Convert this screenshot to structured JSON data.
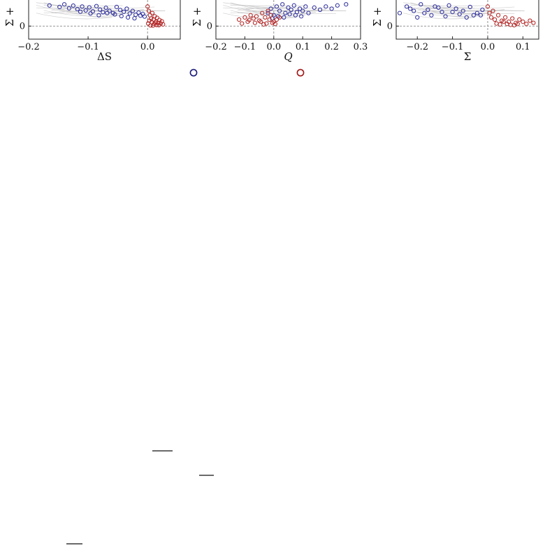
{
  "chart_data": [
    {
      "type": "scatter",
      "xlabel": "ΔS",
      "ylabel": "Σ +",
      "xticks": [
        "−0.2",
        "−0.1",
        "0.0"
      ],
      "yticks": [
        "0"
      ],
      "xlim": [
        -0.2,
        0.055
      ],
      "ylim": [
        -0.06,
        0.12
      ],
      "series": [
        {
          "color": "#2b2b9e",
          "x": [
            -0.165,
            -0.148,
            -0.14,
            -0.132,
            -0.125,
            -0.118,
            -0.11,
            -0.104,
            -0.098,
            -0.092,
            -0.086,
            -0.08,
            -0.075,
            -0.07,
            -0.064,
            -0.058,
            -0.052,
            -0.046,
            -0.04,
            -0.035,
            -0.03,
            -0.025,
            -0.02,
            -0.015,
            -0.012,
            -0.008,
            -0.005,
            -0.113,
            -0.096,
            -0.082,
            -0.068,
            -0.055,
            -0.044,
            -0.033,
            -0.022
          ],
          "y": [
            0.095,
            0.088,
            0.1,
            0.082,
            0.094,
            0.078,
            0.09,
            0.072,
            0.086,
            0.068,
            0.092,
            0.076,
            0.064,
            0.084,
            0.07,
            0.06,
            0.088,
            0.074,
            0.066,
            0.08,
            0.058,
            0.07,
            0.052,
            0.062,
            0.048,
            0.056,
            0.044,
            0.066,
            0.058,
            0.05,
            0.06,
            0.054,
            0.046,
            0.04,
            0.036
          ]
        },
        {
          "color": "#b22222",
          "x": [
            0.0,
            0.002,
            0.004,
            0.006,
            0.008,
            0.01,
            0.012,
            0.014,
            0.016,
            0.018,
            0.02,
            0.022,
            0.024,
            0.026,
            0.003,
            0.007,
            0.011,
            0.015,
            0.019,
            0.001,
            0.005,
            0.009,
            0.013
          ],
          "y": [
            0.09,
            0.07,
            0.05,
            0.035,
            0.06,
            0.03,
            0.045,
            0.02,
            0.038,
            0.015,
            0.028,
            0.012,
            0.022,
            0.008,
            0.025,
            0.018,
            0.01,
            0.005,
            0.004,
            0.012,
            0.003,
            0.002,
            0.015
          ]
        }
      ]
    },
    {
      "type": "scatter",
      "xlabel": "Q",
      "ylabel": "Σ +",
      "xticks": [
        "−0.2",
        "−0.1",
        "0.0",
        "0.1",
        "0.2",
        "0.3"
      ],
      "yticks": [
        "0"
      ],
      "xlim": [
        -0.2,
        0.3
      ],
      "ylim": [
        -0.06,
        0.12
      ],
      "series": [
        {
          "color": "#2b2b9e",
          "x": [
            -0.02,
            -0.01,
            0.0,
            0.01,
            0.02,
            0.03,
            0.04,
            0.05,
            0.06,
            0.07,
            0.08,
            0.09,
            0.1,
            0.11,
            0.12,
            0.14,
            0.16,
            0.18,
            0.2,
            0.22,
            0.25,
            -0.005,
            0.015,
            0.035,
            0.055,
            0.075,
            0.095
          ],
          "y": [
            0.06,
            0.08,
            0.05,
            0.09,
            0.07,
            0.1,
            0.06,
            0.085,
            0.075,
            0.095,
            0.065,
            0.08,
            0.07,
            0.09,
            0.06,
            0.085,
            0.075,
            0.09,
            0.08,
            0.095,
            0.1,
            0.035,
            0.045,
            0.04,
            0.055,
            0.05,
            0.045
          ]
        },
        {
          "color": "#b22222",
          "x": [
            -0.12,
            -0.1,
            -0.09,
            -0.08,
            -0.07,
            -0.06,
            -0.05,
            -0.04,
            -0.03,
            -0.02,
            -0.015,
            -0.01,
            -0.005,
            0.0,
            0.005,
            0.01,
            0.02,
            -0.11,
            -0.085,
            -0.065,
            -0.045,
            -0.025,
            -0.035
          ],
          "y": [
            0.03,
            0.04,
            0.02,
            0.05,
            0.035,
            0.045,
            0.025,
            0.06,
            0.04,
            0.07,
            0.03,
            0.05,
            0.015,
            0.02,
            0.01,
            0.03,
            0.04,
            0.012,
            0.028,
            0.015,
            0.02,
            0.012,
            0.008
          ]
        }
      ]
    },
    {
      "type": "scatter",
      "xlabel": "Σ",
      "ylabel": "Σ +",
      "xticks": [
        "−0.2",
        "−0.1",
        "0.0",
        "0.1"
      ],
      "yticks": [
        "0"
      ],
      "xlim": [
        -0.26,
        0.145
      ],
      "ylim": [
        -0.06,
        0.12
      ],
      "series": [
        {
          "color": "#2b2b9e",
          "x": [
            -0.25,
            -0.23,
            -0.21,
            -0.19,
            -0.17,
            -0.15,
            -0.13,
            -0.11,
            -0.09,
            -0.07,
            -0.05,
            -0.03,
            -0.015,
            -0.2,
            -0.16,
            -0.12,
            -0.08,
            -0.04,
            -0.22,
            -0.18,
            -0.14,
            -0.1,
            -0.06,
            -0.02
          ],
          "y": [
            0.06,
            0.09,
            0.07,
            0.1,
            0.075,
            0.09,
            0.065,
            0.095,
            0.08,
            0.07,
            0.088,
            0.06,
            0.075,
            0.04,
            0.05,
            0.045,
            0.055,
            0.05,
            0.08,
            0.06,
            0.085,
            0.065,
            0.04,
            0.05
          ]
        },
        {
          "color": "#b22222",
          "x": [
            0.0,
            0.005,
            0.01,
            0.015,
            0.02,
            0.03,
            0.04,
            0.05,
            0.06,
            0.07,
            0.08,
            0.09,
            0.1,
            0.11,
            0.12,
            0.13,
            0.025,
            0.035,
            0.045,
            0.055,
            0.065,
            0.075,
            0.085
          ],
          "y": [
            0.09,
            0.06,
            0.04,
            0.07,
            0.03,
            0.05,
            0.025,
            0.04,
            0.02,
            0.035,
            0.015,
            0.03,
            0.02,
            0.01,
            0.025,
            0.015,
            0.012,
            0.008,
            0.02,
            0.01,
            0.006,
            0.004,
            0.01
          ]
        }
      ]
    }
  ],
  "legend": {
    "items": [
      {
        "color": "#1a1a7a"
      },
      {
        "color": "#a01818"
      }
    ]
  }
}
